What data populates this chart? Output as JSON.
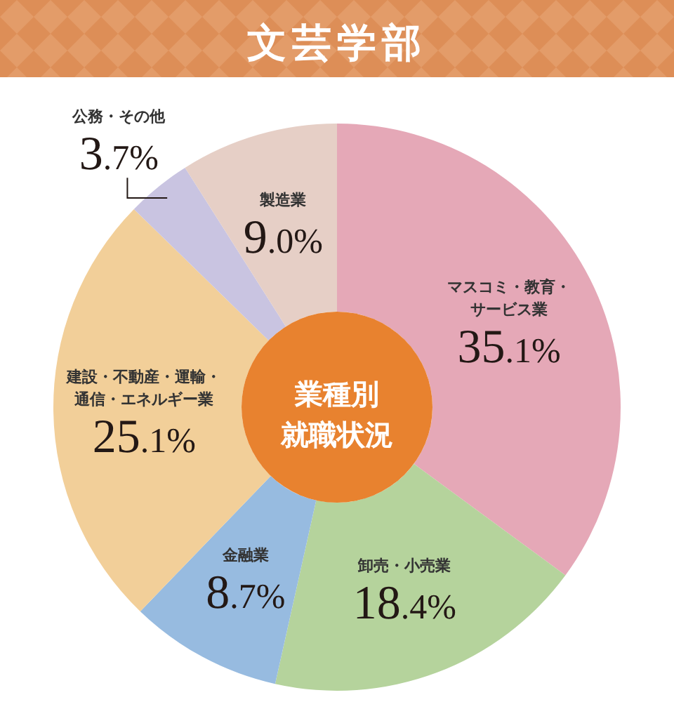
{
  "chart_data": {
    "type": "donut",
    "title": "文芸学部",
    "annotations": [
      "業種別就職状況"
    ],
    "categories": [
      "マスコミ・教育・サービス業",
      "卸売・小売業",
      "金融業",
      "建設・不動産・運輸・通信・エネルギー業",
      "公務・その他",
      "製造業"
    ],
    "values": [
      35.1,
      18.4,
      8.7,
      25.1,
      3.7,
      9.0
    ],
    "colors": [
      "#e5a8b7",
      "#b5d39c",
      "#97bbe0",
      "#f2cf99",
      "#c9c4e1",
      "#e6cfc6"
    ],
    "value_labels": [
      "35.1%",
      "18.4%",
      "8.7%",
      "25.1%",
      "3.7%",
      "9.0%"
    ]
  }
}
